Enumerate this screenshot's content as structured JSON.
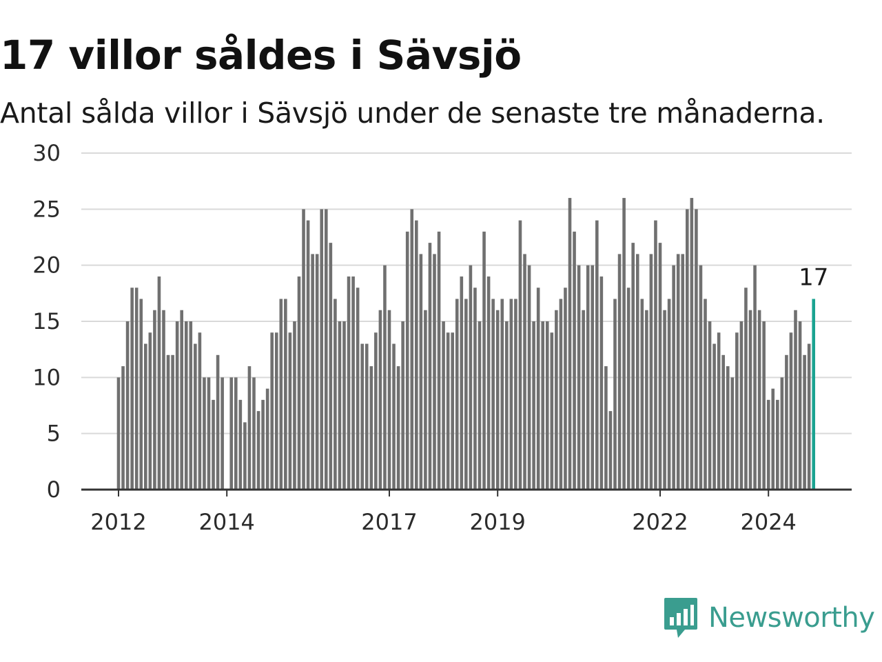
{
  "title": "17 villor såldes i Sävsjö",
  "subtitle": "Antal sålda villor i Sävsjö under de senaste tre månaderna.",
  "brand": {
    "name": "Newsworthy",
    "color": "#3a9d8f",
    "icon": "newsworthy-logo-icon"
  },
  "colors": {
    "bar": "#707070",
    "highlight": "#1aa391",
    "grid": "#d9d9d9",
    "axis": "#333333"
  },
  "chart_data": {
    "type": "bar",
    "title": "17 villor såldes i Sävsjö",
    "subtitle": "Antal sålda villor i Sävsjö under de senaste tre månaderna.",
    "xlabel": "",
    "ylabel": "",
    "ylim": [
      0,
      30
    ],
    "yticks": [
      0,
      5,
      10,
      15,
      20,
      25,
      30
    ],
    "grid": true,
    "xtick_labels": [
      {
        "label": "2012",
        "index": 0
      },
      {
        "label": "2014",
        "index": 24
      },
      {
        "label": "2017",
        "index": 60
      },
      {
        "label": "2019",
        "index": 84
      },
      {
        "label": "2022",
        "index": 120
      },
      {
        "label": "2024",
        "index": 144
      }
    ],
    "values": [
      10,
      11,
      15,
      18,
      18,
      17,
      13,
      14,
      16,
      19,
      16,
      12,
      12,
      15,
      16,
      15,
      15,
      13,
      14,
      10,
      10,
      8,
      12,
      10,
      0,
      10,
      10,
      8,
      6,
      11,
      10,
      7,
      8,
      9,
      14,
      14,
      17,
      17,
      14,
      15,
      19,
      25,
      24,
      21,
      21,
      25,
      25,
      22,
      17,
      15,
      15,
      19,
      19,
      18,
      13,
      13,
      11,
      14,
      16,
      20,
      16,
      13,
      11,
      15,
      23,
      25,
      24,
      21,
      16,
      22,
      21,
      23,
      15,
      14,
      14,
      17,
      19,
      17,
      20,
      18,
      15,
      23,
      19,
      17,
      16,
      17,
      15,
      17,
      17,
      24,
      21,
      20,
      15,
      18,
      15,
      15,
      14,
      16,
      17,
      18,
      26,
      23,
      20,
      16,
      20,
      20,
      24,
      19,
      11,
      7,
      17,
      21,
      26,
      18,
      22,
      21,
      17,
      16,
      21,
      24,
      22,
      16,
      17,
      20,
      21,
      21,
      25,
      26,
      25,
      20,
      17,
      15,
      13,
      14,
      12,
      11,
      10,
      14,
      15,
      18,
      16,
      20,
      16,
      15,
      8,
      9,
      8,
      10,
      12,
      14,
      16,
      15,
      12,
      13,
      17
    ],
    "highlight": {
      "index": 154,
      "value": 17,
      "label": "17"
    }
  }
}
